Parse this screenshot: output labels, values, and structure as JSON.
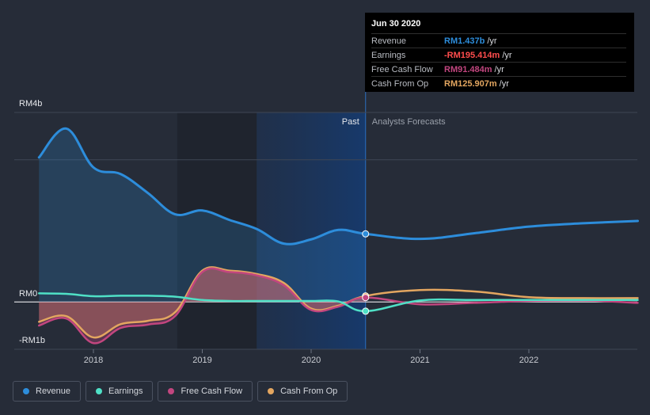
{
  "chart_data": {
    "type": "line",
    "y_labels": {
      "top": "RM4b",
      "zero": "RM0",
      "bottom": "-RM1b"
    },
    "ylim": [
      -1,
      4
    ],
    "x_ticks": [
      "2018",
      "2019",
      "2020",
      "2021",
      "2022"
    ],
    "past_label": "Past",
    "forecast_label": "Analysts Forecasts",
    "series": [
      {
        "name": "Revenue",
        "color": "#2d8ddb",
        "x": [
          2017.5,
          2017.75,
          2018.0,
          2018.25,
          2018.5,
          2018.75,
          2019.0,
          2019.25,
          2019.5,
          2019.75,
          2020.0,
          2020.25,
          2020.5,
          2021.0,
          2021.5,
          2022.0,
          2022.5,
          2023.0
        ],
        "values": [
          3.05,
          3.66,
          2.84,
          2.7,
          2.3,
          1.85,
          1.93,
          1.73,
          1.54,
          1.23,
          1.32,
          1.52,
          1.437,
          1.33,
          1.45,
          1.59,
          1.66,
          1.71
        ]
      },
      {
        "name": "Earnings",
        "color": "#4fe0c6",
        "x": [
          2017.5,
          2017.75,
          2018.0,
          2018.25,
          2018.5,
          2018.75,
          2019.0,
          2019.25,
          2019.5,
          2019.75,
          2020.0,
          2020.25,
          2020.5,
          2021.0,
          2021.5,
          2022.0,
          2022.5,
          2023.0
        ],
        "values": [
          0.18,
          0.17,
          0.12,
          0.13,
          0.13,
          0.11,
          0.04,
          0.02,
          0.02,
          0.02,
          0.02,
          0.01,
          -0.195414,
          0.03,
          0.04,
          0.04,
          0.04,
          0.04
        ]
      },
      {
        "name": "Free Cash Flow",
        "color": "#c2467f",
        "x": [
          2017.5,
          2017.75,
          2018.0,
          2018.25,
          2018.5,
          2018.75,
          2019.0,
          2019.25,
          2019.5,
          2019.75,
          2020.0,
          2020.25,
          2020.5,
          2021.0,
          2021.5,
          2022.0,
          2022.5,
          2023.0
        ],
        "values": [
          -0.5,
          -0.35,
          -0.87,
          -0.55,
          -0.48,
          -0.3,
          0.63,
          0.63,
          0.56,
          0.35,
          -0.17,
          -0.1,
          0.091484,
          -0.05,
          -0.02,
          0.02,
          0.03,
          -0.02
        ]
      },
      {
        "name": "Cash From Op",
        "color": "#e3a660",
        "x": [
          2017.5,
          2017.75,
          2018.0,
          2018.25,
          2018.5,
          2018.75,
          2019.0,
          2019.25,
          2019.5,
          2019.75,
          2020.0,
          2020.25,
          2020.5,
          2021.0,
          2021.5,
          2022.0,
          2022.5,
          2023.0
        ],
        "values": [
          -0.42,
          -0.3,
          -0.75,
          -0.47,
          -0.4,
          -0.22,
          0.66,
          0.66,
          0.59,
          0.4,
          -0.14,
          -0.08,
          0.125907,
          0.25,
          0.22,
          0.1,
          0.08,
          0.08
        ]
      }
    ],
    "highlight": {
      "x": 2020.5,
      "label": "Jun 30 2020"
    }
  },
  "tooltip": {
    "date": "Jun 30 2020",
    "rows": [
      {
        "label": "Revenue",
        "value": "RM1.437b",
        "unit": "/yr",
        "color": "#2d8ddb"
      },
      {
        "label": "Earnings",
        "value": "-RM195.414m",
        "unit": "/yr",
        "color": "#ff4d4d"
      },
      {
        "label": "Free Cash Flow",
        "value": "RM91.484m",
        "unit": "/yr",
        "color": "#c2467f"
      },
      {
        "label": "Cash From Op",
        "value": "RM125.907m",
        "unit": "/yr",
        "color": "#e3a660"
      }
    ]
  },
  "legend": [
    {
      "label": "Revenue",
      "color": "#2d8ddb"
    },
    {
      "label": "Earnings",
      "color": "#4fe0c6"
    },
    {
      "label": "Free Cash Flow",
      "color": "#c2467f"
    },
    {
      "label": "Cash From Op",
      "color": "#e3a660"
    }
  ]
}
